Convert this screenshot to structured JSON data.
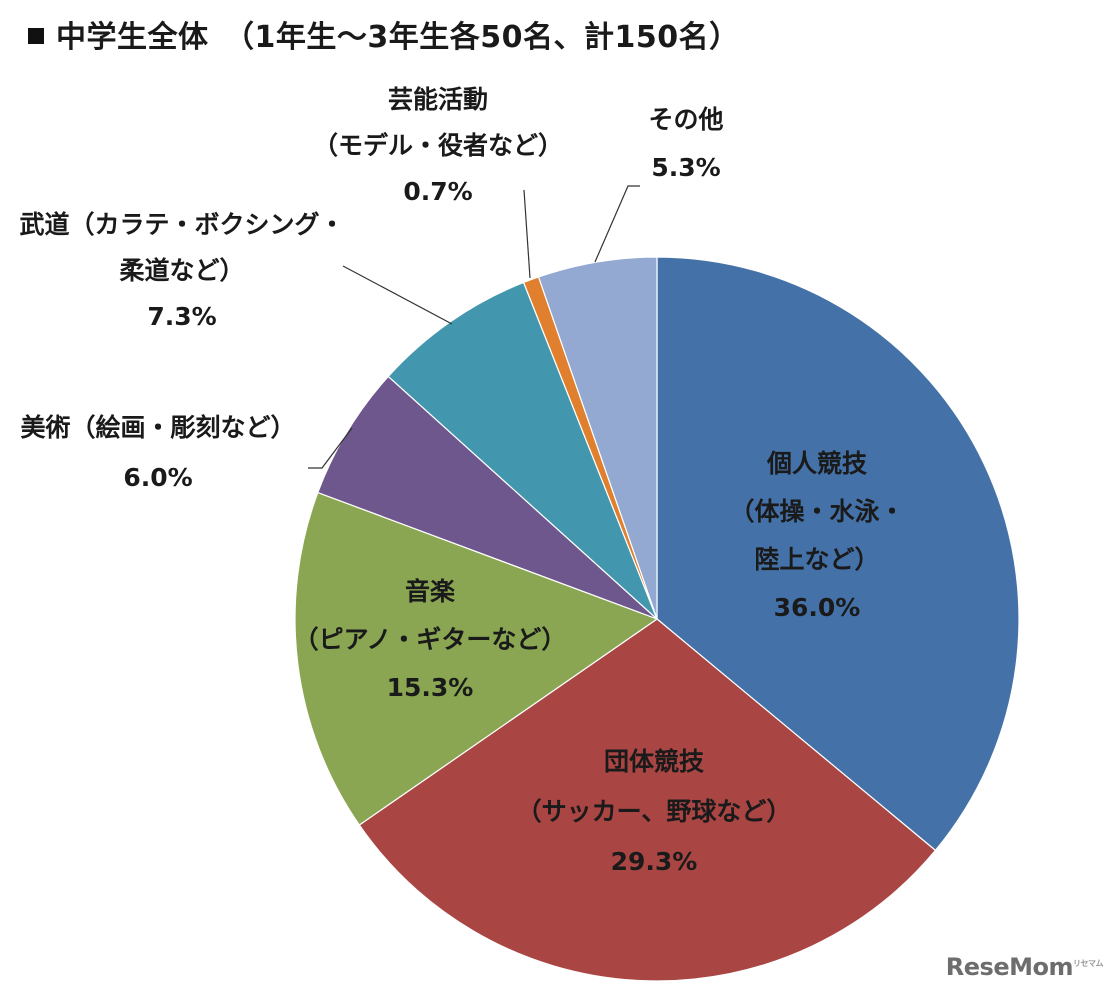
{
  "title": "中学生全体　（1年生～3年生各50名、計150名）",
  "watermark": "ReseMom",
  "chart_data": {
    "type": "pie",
    "title": "中学生全体　（1年生～3年生各50名、計150名）",
    "start_angle_deg": 0,
    "direction": "clockwise",
    "slices": [
      {
        "name": "個人競技",
        "sub": [
          "（体操・水泳・",
          "陸上など）"
        ],
        "value": 36.0,
        "label": "36.0%",
        "color": "#4472a8",
        "label_pos": "inside"
      },
      {
        "name": "団体競技",
        "sub": [
          "（サッカー、野球など）"
        ],
        "value": 29.3,
        "label": "29.3%",
        "color": "#a94543",
        "label_pos": "inside"
      },
      {
        "name": "音楽",
        "sub": [
          "（ピアノ・ギターなど）"
        ],
        "value": 15.3,
        "label": "15.3%",
        "color": "#8aa652",
        "label_pos": "inside"
      },
      {
        "name": "美術（絵画・彫刻など）",
        "sub": [],
        "value": 6.0,
        "label": "6.0%",
        "color": "#6e578c",
        "label_pos": "outside"
      },
      {
        "name": "武道（カラテ・ボクシング・",
        "sub": [
          "柔道など）"
        ],
        "value": 7.3,
        "label": "7.3%",
        "color": "#4296ad",
        "label_pos": "outside"
      },
      {
        "name": "芸能活動",
        "sub": [
          "（モデル・役者など）"
        ],
        "value": 0.7,
        "label": "0.7%",
        "color": "#e0802e",
        "label_pos": "outside"
      },
      {
        "name": "その他",
        "sub": [],
        "value": 5.3,
        "label": "5.3%",
        "color": "#93a9d2",
        "label_pos": "outside"
      }
    ]
  }
}
